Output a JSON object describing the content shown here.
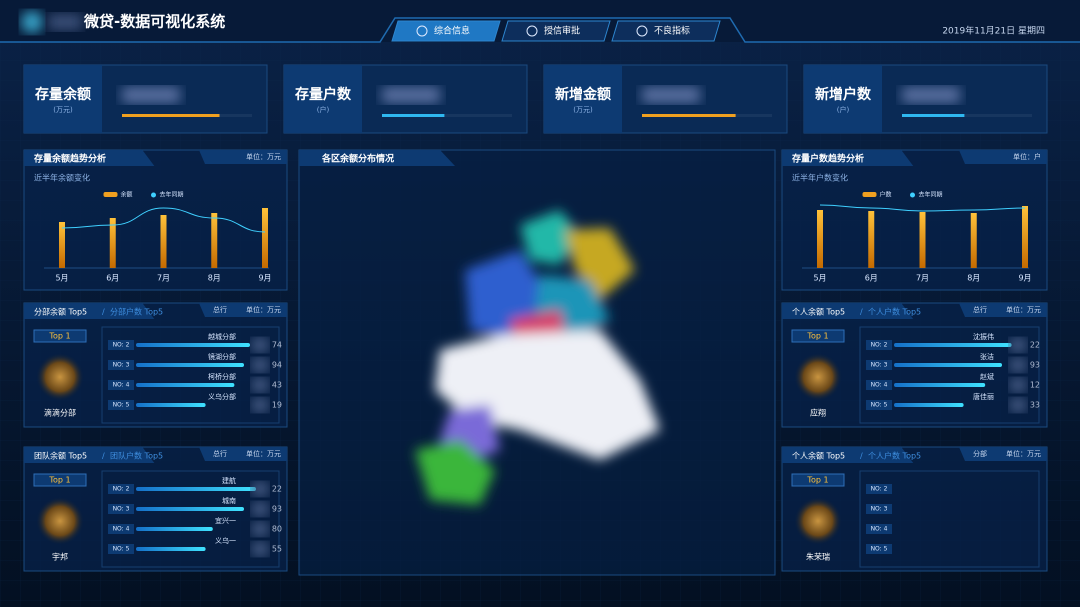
{
  "header": {
    "title": "微贷-数据可视化系统",
    "tabs": [
      "综合信息",
      "授信审批",
      "不良指标"
    ],
    "date": "2019年11月21日 星期四"
  },
  "kpis": [
    {
      "label": "存量余额",
      "unit": "(万元)",
      "progress": 75
    },
    {
      "label": "存量户数",
      "unit": "(户)",
      "progress": 48
    },
    {
      "label": "新增金额",
      "unit": "(万元)",
      "progress": 72
    },
    {
      "label": "新增户数",
      "unit": "(户)",
      "progress": 48
    }
  ],
  "map": {
    "title": "各区余额分布情况"
  },
  "trends": [
    {
      "title": "存量余额趋势分析",
      "unit": "单位：万元",
      "subtitle": "近半年余额变化",
      "legend": [
        "余额",
        "去年同期"
      ],
      "categories": [
        "5月",
        "6月",
        "7月",
        "8月",
        "9月"
      ],
      "bars": [
        46,
        50,
        53,
        55,
        60
      ],
      "line": [
        40,
        43,
        60,
        50,
        36
      ]
    },
    {
      "title": "存量户数趋势分析",
      "unit": "单位：户",
      "subtitle": "近半年户数变化",
      "legend": [
        "户数",
        "去年同期"
      ],
      "categories": [
        "5月",
        "6月",
        "7月",
        "8月",
        "9月"
      ],
      "bars": [
        58,
        57,
        56,
        55,
        62
      ],
      "line": [
        63,
        60,
        57,
        58,
        60
      ]
    }
  ],
  "rankings": [
    {
      "title": "分部余额 Top5",
      "alt": "分部户数 Top5",
      "scope": "总行",
      "unit": "单位：万元",
      "badge": "Top 1",
      "top_name": "滴滴分部",
      "rows": [
        {
          "rank": "NO: 2",
          "name": "越城分部",
          "fragment": "74",
          "bar": 95
        },
        {
          "rank": "NO: 3",
          "name": "镜湖分部",
          "fragment": "94",
          "bar": 90
        },
        {
          "rank": "NO: 4",
          "name": "柯桥分部",
          "fragment": "43",
          "bar": 82
        },
        {
          "rank": "NO: 5",
          "name": "义乌分部",
          "fragment": "19",
          "bar": 58
        }
      ]
    },
    {
      "title": "团队余额 Top5",
      "alt": "团队户数 Top5",
      "scope": "总行",
      "unit": "单位：万元",
      "badge": "Top 1",
      "top_name": "宇邦",
      "rows": [
        {
          "rank": "NO: 2",
          "name": "建航",
          "fragment": "22",
          "bar": 100
        },
        {
          "rank": "NO: 3",
          "name": "城南",
          "fragment": "93",
          "bar": 90
        },
        {
          "rank": "NO: 4",
          "name": "宜兴一",
          "fragment": "80",
          "bar": 64
        },
        {
          "rank": "NO: 5",
          "name": "义乌一",
          "fragment": "55",
          "bar": 58
        }
      ]
    },
    {
      "title": "个人余额 Top5",
      "alt": "个人户数 Top5",
      "scope": "总行",
      "unit": "单位：万元",
      "badge": "Top 1",
      "top_name": "应翔",
      "rows": [
        {
          "rank": "NO: 2",
          "name": "沈振伟",
          "fragment": "22",
          "bar": 98
        },
        {
          "rank": "NO: 3",
          "name": "张洁",
          "fragment": "93",
          "bar": 90
        },
        {
          "rank": "NO: 4",
          "name": "赵斌",
          "fragment": "12",
          "bar": 76
        },
        {
          "rank": "NO: 5",
          "name": "唐佳丽",
          "fragment": "33",
          "bar": 58
        }
      ]
    },
    {
      "title": "个人余额 Top5",
      "alt": "个人户数 Top5",
      "scope": "分部",
      "unit": "单位：万元",
      "badge": "Top 1",
      "top_name": "朱荣瑞",
      "rows": [
        {
          "rank": "NO: 2"
        },
        {
          "rank": "NO: 3"
        },
        {
          "rank": "NO: 4"
        },
        {
          "rank": "NO: 5"
        }
      ]
    }
  ]
}
